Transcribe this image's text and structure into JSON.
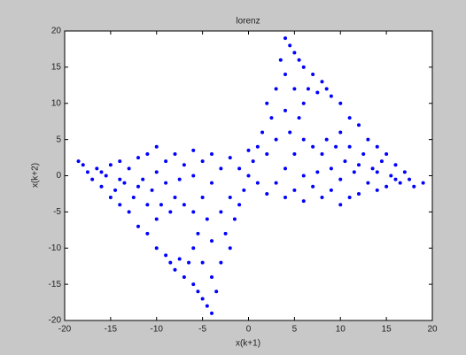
{
  "chart_data": {
    "type": "scatter",
    "title": "lorenz",
    "x_label": "x(k+1)",
    "y_label": "x(k+2)",
    "color": "#0000ff",
    "x": [
      -18,
      -17.5,
      -17,
      -16.5,
      -16,
      -15.5,
      -15,
      -15,
      -14.5,
      -14,
      -14,
      -13.5,
      -13,
      -13,
      -12.5,
      -12,
      -12,
      -11.5,
      -11,
      -11,
      -11,
      -10.5,
      -10,
      -10,
      -10,
      -10,
      -9.5,
      -9,
      -9,
      -9,
      -8.5,
      -8.5,
      -8,
      -8,
      -8,
      -7.5,
      -7.5,
      -7,
      -7,
      -7,
      -6.5,
      -6,
      -6,
      -6,
      -6,
      -6,
      -5.5,
      -5.5,
      -5,
      -5,
      -5,
      -5,
      -4.5,
      -4.5,
      -4,
      -4,
      -4,
      -4,
      -4,
      -3.5,
      -3,
      -3,
      -3,
      -2.5,
      -2,
      -2,
      -2,
      -1.5,
      -1,
      -1,
      -0.5,
      0,
      0,
      -12,
      -14,
      -16,
      18,
      17.5,
      17,
      16.5,
      16,
      15.5,
      15,
      15,
      14.5,
      14,
      14,
      13.5,
      13,
      13,
      12.5,
      12,
      12,
      11.5,
      11,
      11,
      11,
      10.5,
      10,
      10,
      10,
      10,
      9.5,
      9,
      9,
      9,
      8.5,
      8.5,
      8,
      8,
      8,
      7.5,
      7.5,
      7,
      7,
      7,
      6.5,
      6,
      6,
      6,
      6,
      6,
      5.5,
      5.5,
      5,
      5,
      5,
      5,
      4.5,
      4.5,
      4,
      4,
      4,
      4,
      4,
      3.5,
      3,
      3,
      3,
      2.5,
      2,
      2,
      2,
      1.5,
      1,
      1,
      0.5,
      12,
      14,
      16,
      19,
      -18.5
    ],
    "values": [
      1.5,
      0.5,
      -0.5,
      1,
      -1.5,
      0,
      -3,
      1.5,
      -2,
      -4,
      2,
      -1,
      -5,
      1,
      -3,
      -7,
      2.5,
      -0.5,
      -8,
      -4,
      3,
      -2,
      -10,
      -6,
      0.5,
      4,
      -4,
      -11,
      -1,
      2,
      -12,
      -5,
      -13,
      -3,
      3,
      -11.5,
      -0.5,
      -14,
      -4,
      1.5,
      -12,
      -15,
      -10,
      -5,
      0,
      3.5,
      -16,
      -8,
      -17,
      -12,
      -3,
      2,
      -18,
      -6,
      -19,
      -14,
      -9,
      -1,
      3,
      -16,
      -12,
      -5,
      1,
      -8,
      -10,
      -3,
      2.5,
      -6,
      -4,
      1,
      -2,
      0,
      3.5,
      -1.5,
      -0.5,
      0.5,
      -1.5,
      -0.5,
      0.5,
      -1,
      1.5,
      0,
      3,
      -1.5,
      2,
      4,
      -2,
      1,
      5,
      -1,
      3,
      7,
      -2.5,
      0.5,
      8,
      4,
      -3,
      2,
      10,
      6,
      -0.5,
      -4,
      4,
      11,
      1,
      -2,
      12,
      5,
      13,
      3,
      -3,
      11.5,
      0.5,
      14,
      4,
      -1.5,
      12,
      15,
      10,
      5,
      0,
      -3.5,
      16,
      8,
      17,
      12,
      3,
      -2,
      18,
      6,
      19,
      14,
      9,
      1,
      -3,
      16,
      12,
      5,
      -1,
      8,
      10,
      3,
      -2.5,
      6,
      4,
      -1,
      2,
      1.5,
      0.5,
      -0.5,
      -1,
      2
    ],
    "xlim": [
      -20,
      20
    ],
    "ylim": [
      -20,
      20
    ],
    "xticks": [
      -20,
      -15,
      -10,
      -5,
      0,
      5,
      10,
      15,
      20
    ],
    "yticks": [
      -20,
      -15,
      -10,
      -5,
      0,
      5,
      10,
      15,
      20
    ]
  }
}
